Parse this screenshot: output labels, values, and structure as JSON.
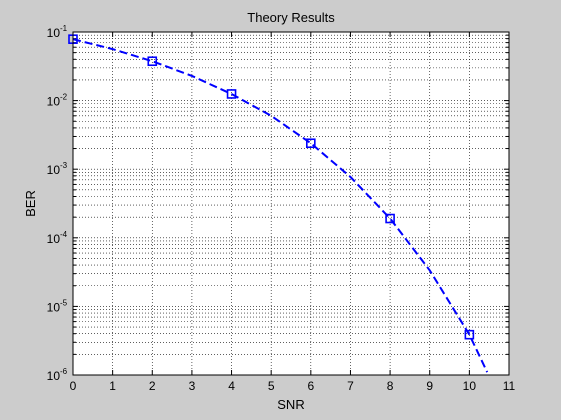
{
  "chart_data": {
    "type": "line",
    "title": "Theory Results",
    "xlabel": "SNR",
    "ylabel": "BER",
    "xlim": [
      0,
      11
    ],
    "ylim": [
      1e-06,
      0.1
    ],
    "yscale": "log",
    "grid": true,
    "x_ticks": [
      "0",
      "1",
      "2",
      "3",
      "4",
      "5",
      "6",
      "7",
      "8",
      "9",
      "10",
      "11"
    ],
    "y_ticks": [
      {
        "base": "10",
        "exp": "-6",
        "value": 1e-06
      },
      {
        "base": "10",
        "exp": "-5",
        "value": 1e-05
      },
      {
        "base": "10",
        "exp": "-4",
        "value": 0.0001
      },
      {
        "base": "10",
        "exp": "-3",
        "value": 0.001
      },
      {
        "base": "10",
        "exp": "-2",
        "value": 0.01
      },
      {
        "base": "10",
        "exp": "-1",
        "value": 0.1
      }
    ],
    "series": [
      {
        "color": "#0000ff",
        "line_style": "dashed",
        "marker": "square",
        "x": [
          0,
          1,
          2,
          3,
          4,
          5,
          6,
          7,
          8,
          9,
          10,
          10.45
        ],
        "values": [
          0.0786,
          0.0563,
          0.0375,
          0.0229,
          0.0125,
          0.006,
          0.00239,
          0.00077,
          0.000191,
          3.36e-05,
          3.87e-06,
          1.1e-06
        ],
        "marker_x": [
          0,
          2,
          4,
          6,
          8,
          10
        ],
        "marker_values": [
          0.0786,
          0.0375,
          0.0125,
          0.00239,
          0.000191,
          3.87e-06
        ]
      }
    ]
  }
}
